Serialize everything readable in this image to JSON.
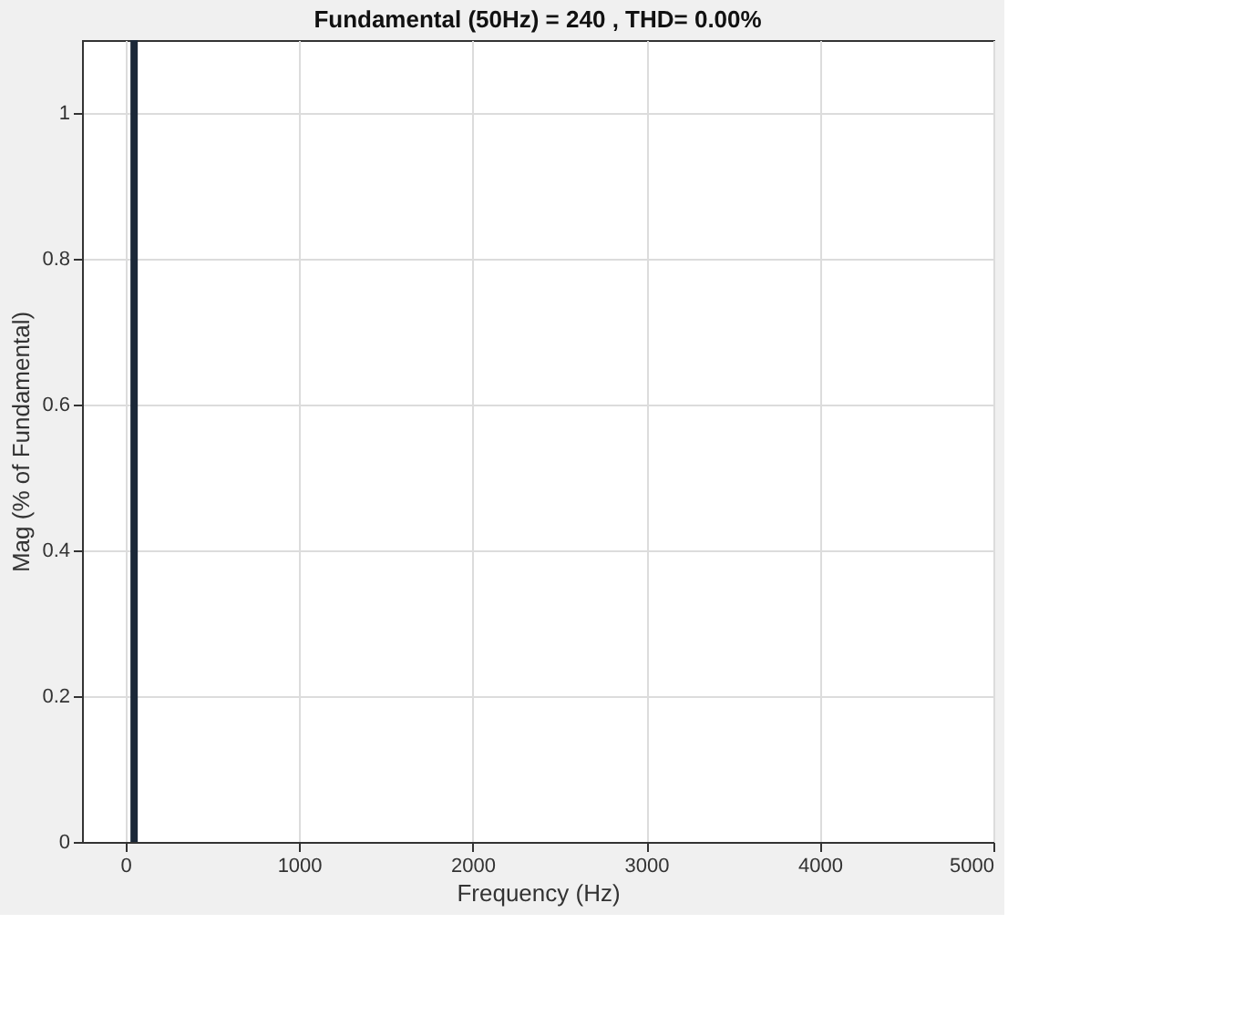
{
  "chart_data": {
    "type": "bar",
    "title": "Fundamental (50Hz) = 240 , THD= 0.00%",
    "xlabel": "Frequency (Hz)",
    "ylabel": "Mag (% of Fundamental)",
    "x": [
      50
    ],
    "values": [
      1.1
    ],
    "color": "#1b2838",
    "xlim": [
      -250,
      5000
    ],
    "xticks": [
      0,
      1000,
      2000,
      3000,
      4000,
      5000
    ],
    "ylim": [
      0,
      1.1
    ],
    "yticks": [
      0,
      0.2,
      0.4,
      0.6,
      0.8,
      1
    ],
    "grid": true
  }
}
